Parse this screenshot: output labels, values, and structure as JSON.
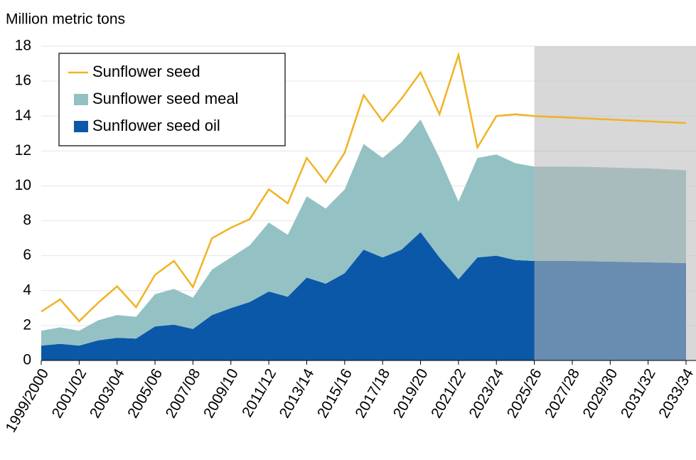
{
  "chart_data": {
    "type": "line-stacked-area",
    "y_axis_label": "Million metric tons",
    "categories": [
      "1999/2000",
      null,
      "2001/02",
      null,
      "2003/04",
      null,
      "2005/06",
      null,
      "2007/08",
      null,
      "2009/10",
      null,
      "2011/12",
      null,
      "2013/14",
      null,
      "2015/16",
      null,
      "2017/18",
      null,
      "2019/20",
      null,
      "2021/22",
      null,
      "2023/24",
      null,
      "2025/26",
      null,
      "2027/28",
      null,
      "2029/30",
      null,
      "2031/32",
      null,
      "2033/34"
    ],
    "series": [
      {
        "name": "Sunflower seed",
        "kind": "line",
        "color": "#f0b323",
        "values": [
          2.8,
          3.5,
          2.25,
          3.3,
          4.25,
          3.05,
          4.9,
          5.7,
          4.2,
          7.0,
          7.6,
          8.1,
          9.8,
          9.0,
          11.6,
          10.2,
          11.9,
          15.2,
          13.7,
          15.0,
          16.5,
          14.1,
          17.5,
          12.2,
          14.0,
          14.1,
          14.0,
          13.95,
          13.9,
          13.85,
          13.8,
          13.75,
          13.7,
          13.65,
          13.6
        ]
      },
      {
        "name": "Sunflower seed meal",
        "kind": "area",
        "color": "#94c1c4",
        "values": [
          0.85,
          0.95,
          0.85,
          1.15,
          1.3,
          1.25,
          1.85,
          2.05,
          1.8,
          2.6,
          2.9,
          3.25,
          3.95,
          3.55,
          4.65,
          4.3,
          4.8,
          6.05,
          5.7,
          6.15,
          6.45,
          5.7,
          4.45,
          5.7,
          5.8,
          5.55,
          5.4,
          5.4,
          5.4,
          5.4,
          5.39,
          5.38,
          5.38,
          5.35,
          5.32
        ]
      },
      {
        "name": "Sunflower seed oil",
        "kind": "area",
        "color": "#0b58a8",
        "values": [
          0.85,
          0.95,
          0.85,
          1.15,
          1.3,
          1.25,
          1.95,
          2.05,
          1.8,
          2.6,
          3.0,
          3.35,
          3.95,
          3.65,
          4.75,
          4.4,
          5.0,
          6.35,
          5.9,
          6.35,
          7.35,
          5.9,
          4.65,
          5.9,
          6.0,
          5.75,
          5.7,
          5.7,
          5.7,
          5.68,
          5.66,
          5.64,
          5.62,
          5.6,
          5.58
        ]
      }
    ],
    "shade_from": "2025/26",
    "ylim": [
      0,
      18
    ],
    "yticks": [
      0,
      2,
      4,
      6,
      8,
      10,
      12,
      14,
      16,
      18
    ],
    "grid": true,
    "legend": "top-left"
  }
}
